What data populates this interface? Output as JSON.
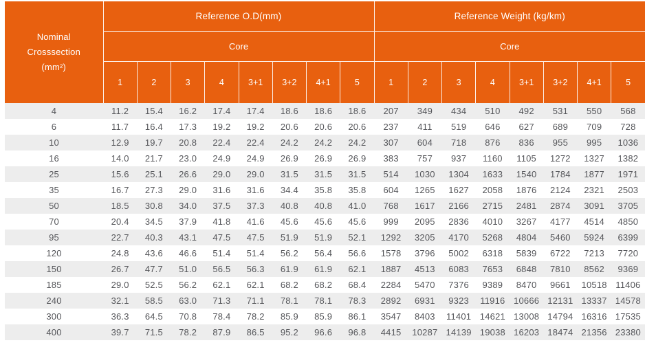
{
  "chart_data": {
    "type": "table",
    "corner_header": {
      "line1": "Nominal",
      "line2": "Crosssection",
      "line3": "(mm²)"
    },
    "sections": [
      {
        "title": "Reference O.D(mm)",
        "subtitle": "Core"
      },
      {
        "title": "Reference Weight (kg/km)",
        "subtitle": "Core"
      }
    ],
    "core_columns": [
      "1",
      "2",
      "3",
      "4",
      "3+1",
      "3+2",
      "4+1",
      "5"
    ],
    "rows": [
      {
        "crosssection": "4",
        "od": [
          "11.2",
          "15.4",
          "16.2",
          "17.4",
          "17.4",
          "18.6",
          "18.6",
          "18.6"
        ],
        "weight": [
          "207",
          "349",
          "434",
          "510",
          "492",
          "531",
          "550",
          "568"
        ]
      },
      {
        "crosssection": "6",
        "od": [
          "11.7",
          "16.4",
          "17.3",
          "19.2",
          "19.2",
          "20.6",
          "20.6",
          "20.6"
        ],
        "weight": [
          "237",
          "411",
          "519",
          "646",
          "627",
          "689",
          "709",
          "728"
        ]
      },
      {
        "crosssection": "10",
        "od": [
          "12.9",
          "19.7",
          "20.8",
          "22.4",
          "22.4",
          "24.2",
          "24.2",
          "24.2"
        ],
        "weight": [
          "307",
          "604",
          "718",
          "876",
          "836",
          "955",
          "995",
          "1036"
        ]
      },
      {
        "crosssection": "16",
        "od": [
          "14.0",
          "21.7",
          "23.0",
          "24.9",
          "24.9",
          "26.9",
          "26.9",
          "26.9"
        ],
        "weight": [
          "383",
          "757",
          "937",
          "1160",
          "1105",
          "1272",
          "1327",
          "1382"
        ]
      },
      {
        "crosssection": "25",
        "od": [
          "15.6",
          "25.1",
          "26.6",
          "29.0",
          "29.0",
          "31.5",
          "31.5",
          "31.5"
        ],
        "weight": [
          "514",
          "1030",
          "1304",
          "1633",
          "1540",
          "1784",
          "1877",
          "1971"
        ]
      },
      {
        "crosssection": "35",
        "od": [
          "16.7",
          "27.3",
          "29.0",
          "31.6",
          "31.6",
          "34.4",
          "35.8",
          "35.8"
        ],
        "weight": [
          "604",
          "1265",
          "1627",
          "2058",
          "1876",
          "2124",
          "2321",
          "2503"
        ]
      },
      {
        "crosssection": "50",
        "od": [
          "18.5",
          "30.8",
          "34.0",
          "37.5",
          "37.3",
          "40.8",
          "40.8",
          "41.0"
        ],
        "weight": [
          "768",
          "1617",
          "2166",
          "2715",
          "2481",
          "2874",
          "3091",
          "3705"
        ]
      },
      {
        "crosssection": "70",
        "od": [
          "20.4",
          "34.5",
          "37.9",
          "41.8",
          "41.6",
          "45.6",
          "45.6",
          "45.6"
        ],
        "weight": [
          "999",
          "2095",
          "2836",
          "4010",
          "3267",
          "4177",
          "4514",
          "4850"
        ]
      },
      {
        "crosssection": "95",
        "od": [
          "22.7",
          "40.3",
          "43.1",
          "47.5",
          "47.5",
          "51.9",
          "51.9",
          "52.1"
        ],
        "weight": [
          "1292",
          "3205",
          "4170",
          "5268",
          "4804",
          "5460",
          "5924",
          "6399"
        ]
      },
      {
        "crosssection": "120",
        "od": [
          "24.8",
          "43.6",
          "46.6",
          "51.4",
          "51.4",
          "56.2",
          "56.4",
          "56.6"
        ],
        "weight": [
          "1578",
          "3796",
          "5002",
          "6318",
          "5839",
          "6722",
          "7213",
          "7720"
        ]
      },
      {
        "crosssection": "150",
        "od": [
          "26.7",
          "47.7",
          "51.0",
          "56.5",
          "56.3",
          "61.9",
          "61.9",
          "62.1"
        ],
        "weight": [
          "1887",
          "4513",
          "6083",
          "7653",
          "6848",
          "7810",
          "8562",
          "9369"
        ]
      },
      {
        "crosssection": "185",
        "od": [
          "29.0",
          "52.5",
          "56.2",
          "62.1",
          "62.1",
          "68.2",
          "68.2",
          "68.4"
        ],
        "weight": [
          "2284",
          "5470",
          "7376",
          "9389",
          "8470",
          "9661",
          "10518",
          "11406"
        ]
      },
      {
        "crosssection": "240",
        "od": [
          "32.1",
          "58.5",
          "63.0",
          "71.3",
          "71.1",
          "78.1",
          "78.1",
          "78.3"
        ],
        "weight": [
          "2892",
          "6931",
          "9323",
          "11916",
          "10666",
          "12131",
          "13337",
          "14578"
        ]
      },
      {
        "crosssection": "300",
        "od": [
          "36.3",
          "64.5",
          "70.8",
          "78.4",
          "78.2",
          "85.9",
          "85.9",
          "86.1"
        ],
        "weight": [
          "3547",
          "8403",
          "11401",
          "14621",
          "13008",
          "14794",
          "16316",
          "17535"
        ]
      },
      {
        "crosssection": "400",
        "od": [
          "39.7",
          "71.5",
          "78.2",
          "87.9",
          "86.5",
          "95.2",
          "96.6",
          "96.8"
        ],
        "weight": [
          "4415",
          "10287",
          "14139",
          "19038",
          "16203",
          "18474",
          "21356",
          "23380"
        ]
      }
    ],
    "layout": {
      "header_bg": "#E8600F",
      "header_text": "#FFFFFF",
      "stripe_bg": "#EDEDED",
      "body_text": "#55565A",
      "grid": "white header dividers, no body gridlines, zebra striping"
    }
  }
}
